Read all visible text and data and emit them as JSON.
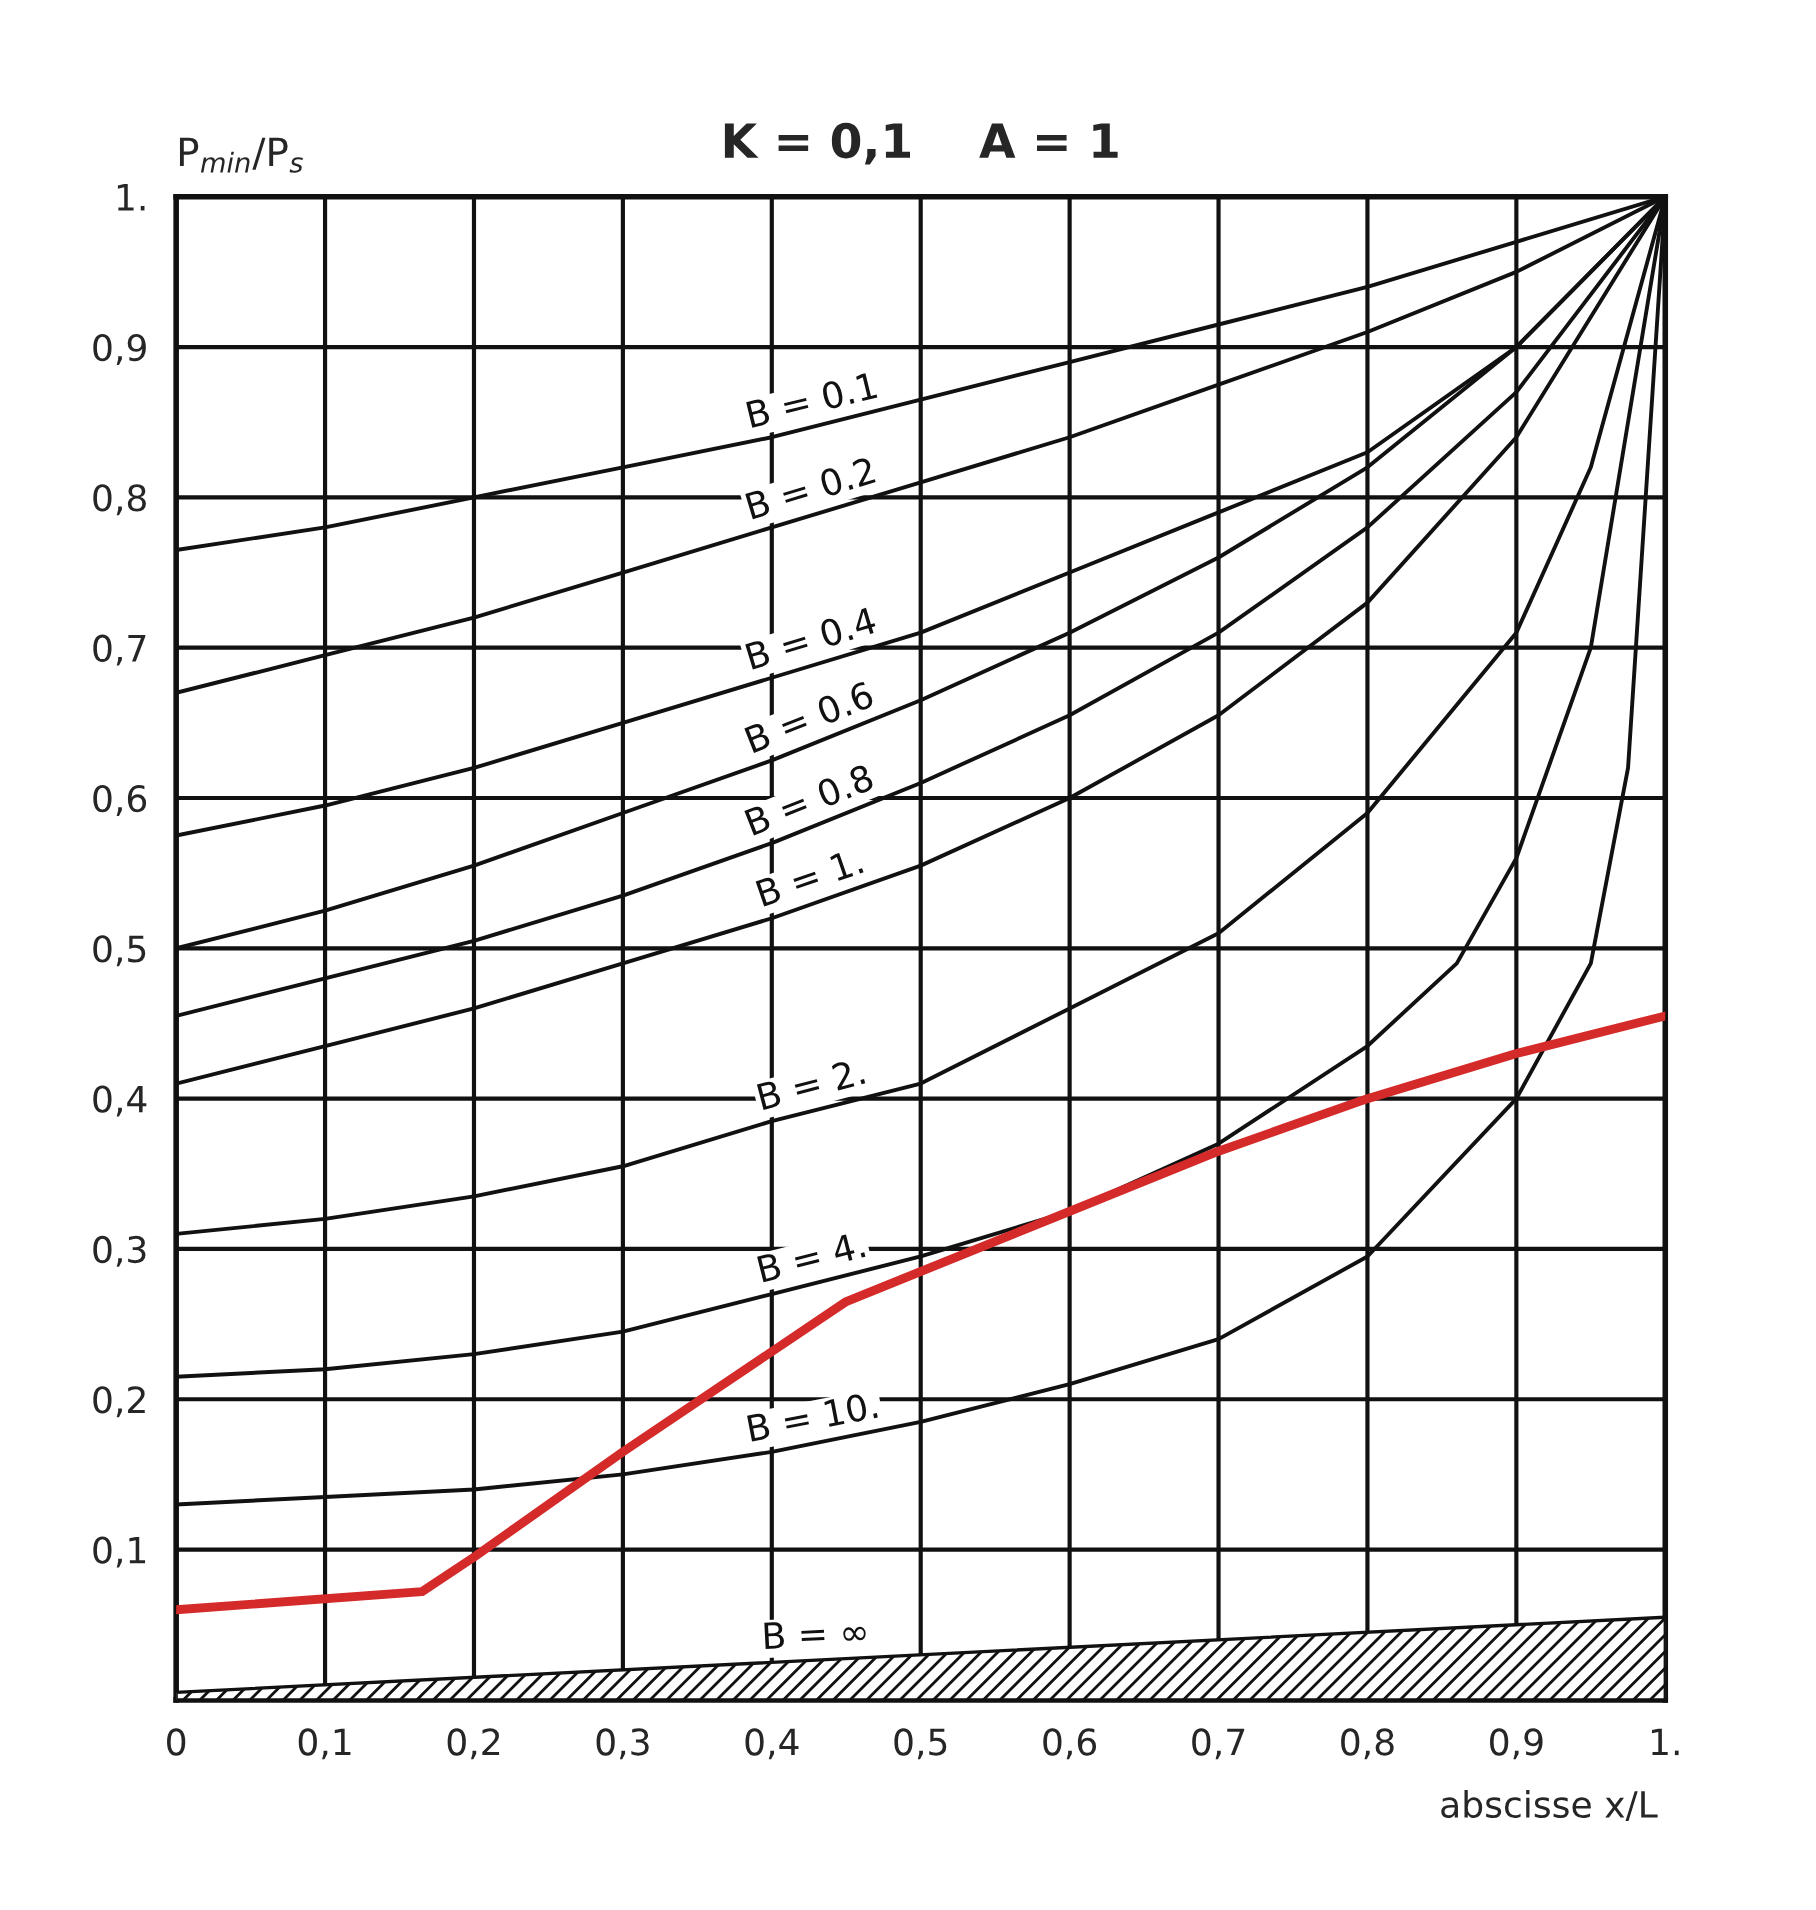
{
  "chart_data": {
    "type": "line",
    "title": "K = 0,1    A = 1",
    "xlabel": "abscisse x/L",
    "ylabel": "P$_{min}$/P$_{s}$",
    "xlim": [
      0,
      1
    ],
    "ylim": [
      0,
      1
    ],
    "xticks": [
      {
        "value": 0,
        "label": "0"
      },
      {
        "value": 0.1,
        "label": "0,1"
      },
      {
        "value": 0.2,
        "label": "0,2"
      },
      {
        "value": 0.3,
        "label": "0,3"
      },
      {
        "value": 0.4,
        "label": "0,4"
      },
      {
        "value": 0.5,
        "label": "0,5"
      },
      {
        "value": 0.6,
        "label": "0,6"
      },
      {
        "value": 0.7,
        "label": "0,7"
      },
      {
        "value": 0.8,
        "label": "0,8"
      },
      {
        "value": 0.9,
        "label": "0,9"
      },
      {
        "value": 1,
        "label": "1."
      }
    ],
    "yticks": [
      {
        "value": 0,
        "label": null
      },
      {
        "value": 0.1,
        "label": "0,1"
      },
      {
        "value": 0.2,
        "label": "0,2"
      },
      {
        "value": 0.3,
        "label": "0,3"
      },
      {
        "value": 0.4,
        "label": "0,4"
      },
      {
        "value": 0.5,
        "label": "0,5"
      },
      {
        "value": 0.6,
        "label": "0,6"
      },
      {
        "value": 0.7,
        "label": "0,7"
      },
      {
        "value": 0.8,
        "label": "0,8"
      },
      {
        "value": 0.9,
        "label": "0,9"
      },
      {
        "value": 1,
        "label": "1."
      }
    ],
    "grid": true,
    "line_style": "solid",
    "marker": "none",
    "series": [
      {
        "name": "B = 0.1",
        "color": "#111111",
        "x": [
          0,
          0.1,
          0.2,
          0.3,
          0.4,
          0.5,
          0.6,
          0.7,
          0.8,
          0.9,
          1
        ],
        "values": [
          0.765,
          0.78,
          0.8,
          0.82,
          0.84,
          0.865,
          0.89,
          0.915,
          0.94,
          0.97,
          1.0
        ]
      },
      {
        "name": "B = 0.2",
        "color": "#111111",
        "x": [
          0,
          0.1,
          0.2,
          0.3,
          0.4,
          0.5,
          0.6,
          0.7,
          0.8,
          0.9,
          1
        ],
        "values": [
          0.67,
          0.695,
          0.72,
          0.75,
          0.78,
          0.81,
          0.84,
          0.875,
          0.91,
          0.95,
          1.0
        ]
      },
      {
        "name": "B = 0.4",
        "color": "#111111",
        "x": [
          0,
          0.1,
          0.2,
          0.3,
          0.4,
          0.5,
          0.6,
          0.7,
          0.8,
          0.9,
          1
        ],
        "values": [
          0.575,
          0.595,
          0.62,
          0.65,
          0.68,
          0.71,
          0.75,
          0.79,
          0.83,
          0.9,
          1.0
        ]
      },
      {
        "name": "B = 0.6",
        "color": "#111111",
        "x": [
          0,
          0.1,
          0.2,
          0.3,
          0.4,
          0.5,
          0.6,
          0.7,
          0.8,
          0.9,
          1
        ],
        "values": [
          0.5,
          0.525,
          0.555,
          0.59,
          0.625,
          0.665,
          0.71,
          0.76,
          0.82,
          0.9,
          1.0
        ]
      },
      {
        "name": "B = 0.8",
        "color": "#111111",
        "x": [
          0,
          0.1,
          0.2,
          0.3,
          0.4,
          0.5,
          0.6,
          0.7,
          0.8,
          0.9,
          1
        ],
        "values": [
          0.455,
          0.48,
          0.505,
          0.535,
          0.57,
          0.61,
          0.655,
          0.71,
          0.78,
          0.87,
          1.0
        ]
      },
      {
        "name": "B = 1.",
        "color": "#111111",
        "x": [
          0,
          0.1,
          0.2,
          0.3,
          0.4,
          0.5,
          0.6,
          0.7,
          0.8,
          0.9,
          1
        ],
        "values": [
          0.41,
          0.435,
          0.46,
          0.49,
          0.52,
          0.555,
          0.6,
          0.655,
          0.73,
          0.84,
          1.0
        ]
      },
      {
        "name": "B = 2.",
        "color": "#111111",
        "x": [
          0,
          0.1,
          0.2,
          0.3,
          0.4,
          0.5,
          0.6,
          0.7,
          0.8,
          0.9,
          0.95,
          1
        ],
        "values": [
          0.31,
          0.32,
          0.335,
          0.355,
          0.385,
          0.41,
          0.46,
          0.51,
          0.59,
          0.71,
          0.82,
          1.0
        ]
      },
      {
        "name": "B = 4.",
        "color": "#111111",
        "x": [
          0,
          0.1,
          0.2,
          0.3,
          0.4,
          0.5,
          0.6,
          0.7,
          0.8,
          0.86,
          0.9,
          0.95,
          1
        ],
        "values": [
          0.215,
          0.22,
          0.23,
          0.245,
          0.27,
          0.295,
          0.325,
          0.37,
          0.435,
          0.49,
          0.56,
          0.7,
          1.0
        ]
      },
      {
        "name": "B = 10.",
        "color": "#111111",
        "x": [
          0,
          0.1,
          0.2,
          0.3,
          0.4,
          0.5,
          0.6,
          0.7,
          0.8,
          0.9,
          0.95,
          0.975,
          1
        ],
        "values": [
          0.13,
          0.135,
          0.14,
          0.15,
          0.165,
          0.185,
          0.21,
          0.24,
          0.295,
          0.4,
          0.49,
          0.62,
          1.0
        ]
      },
      {
        "name": "B = ∞",
        "type": "area",
        "color": "#111111",
        "x": [
          0,
          1
        ],
        "values": [
          0.005,
          0.055
        ]
      },
      {
        "color": "#d42a2a",
        "x": [
          0,
          0.165,
          0.2,
          0.3,
          0.45,
          0.6,
          0.7,
          0.8,
          0.9,
          1.0
        ],
        "values": [
          0.06,
          0.072,
          0.095,
          0.165,
          0.265,
          0.325,
          0.365,
          0.4,
          0.43,
          0.455
        ]
      }
    ]
  }
}
